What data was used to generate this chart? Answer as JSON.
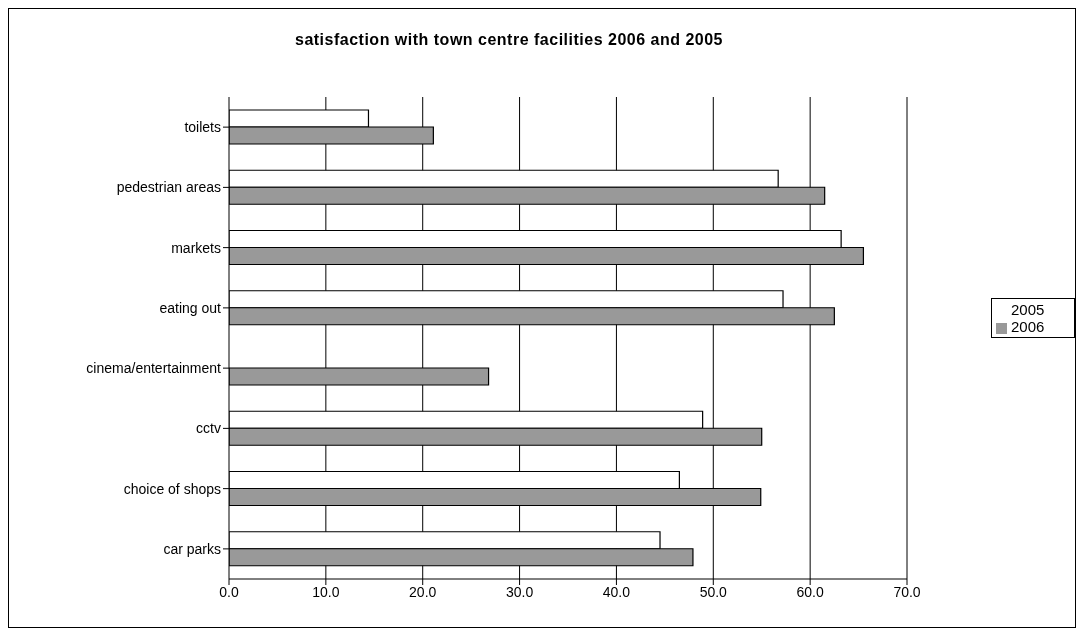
{
  "chart_data": {
    "type": "bar",
    "orientation": "horizontal",
    "title": "satisfaction with town centre facilities 2006 and 2005",
    "categories": [
      "toilets",
      "pedestrian areas",
      "markets",
      "eating out",
      "cinema/entertainment",
      "cctv",
      "choice of shops",
      "car parks"
    ],
    "series": [
      {
        "name": "2005",
        "color": "#ffffff",
        "values": [
          14.4,
          56.7,
          63.2,
          57.2,
          null,
          48.9,
          46.5,
          44.5
        ]
      },
      {
        "name": "2006",
        "color": "#999999",
        "values": [
          21.1,
          61.5,
          65.5,
          62.5,
          26.8,
          55.0,
          54.9,
          47.9
        ]
      }
    ],
    "xlim": [
      0,
      70
    ],
    "xticks": [
      {
        "value": 0,
        "label": "0.0"
      },
      {
        "value": 10,
        "label": "10.0"
      },
      {
        "value": 20,
        "label": "20.0"
      },
      {
        "value": 30,
        "label": "30.0"
      },
      {
        "value": 40,
        "label": "40.0"
      },
      {
        "value": 50,
        "label": "50.0"
      },
      {
        "value": 60,
        "label": "60.0"
      },
      {
        "value": 70,
        "label": "70.0"
      }
    ],
    "grid": "x",
    "legend": "right"
  }
}
